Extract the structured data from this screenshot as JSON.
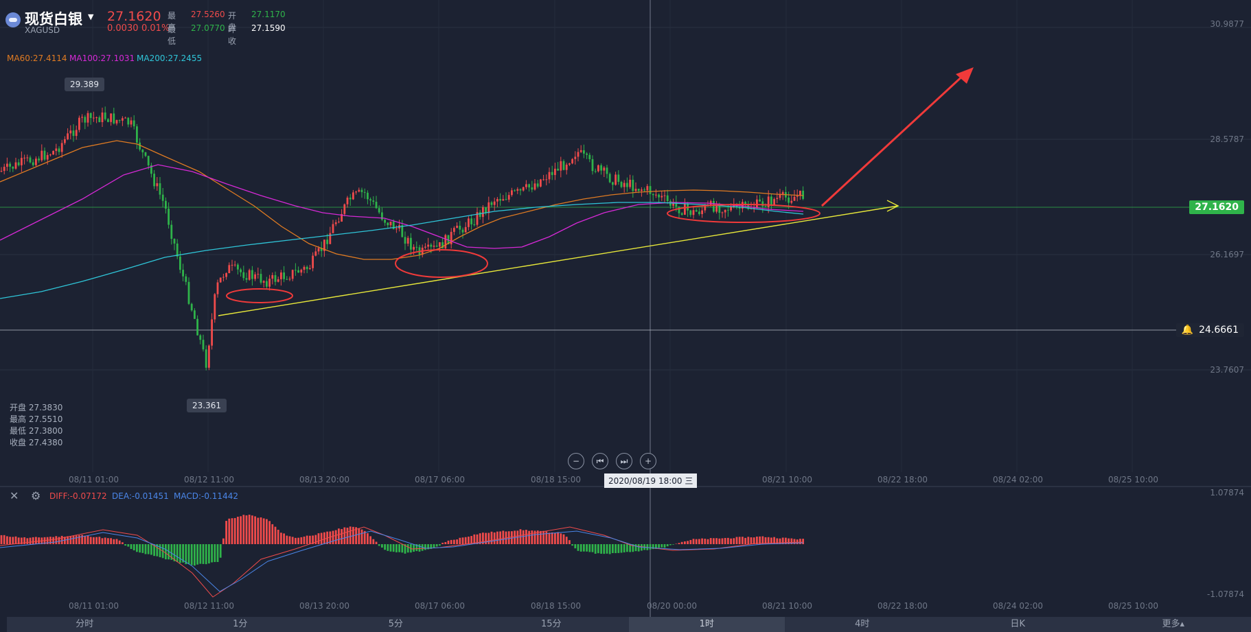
{
  "header": {
    "symbol_name": "现货白银",
    "symbol_code": "XAGUSD",
    "price": "27.1620",
    "change": "0.0030",
    "change_pct": "0.01%",
    "high_label": "最高",
    "high_value": "27.5260",
    "open_label": "开盘",
    "open_value": "27.1170",
    "low_label": "最低",
    "low_value": "27.0770",
    "prev_close_label": "昨收",
    "prev_close_value": "27.1590"
  },
  "ma_legend": {
    "ma60": "MA60:27.4114",
    "ma100": "MA100:27.1031",
    "ma200": "MA200:27.2455"
  },
  "cursor_ohlc": {
    "open": "开盘 27.3830",
    "high": "最高 27.5510",
    "low": "最低 27.3800",
    "close": "收盘 27.4380"
  },
  "price_axis": [
    "30.9877",
    "28.5787",
    "26.1697",
    "23.7607"
  ],
  "current_price_tag": "27.1620",
  "alert_price_tag": "24.6661",
  "annotations": {
    "max_label": "29.389",
    "min_label": "23.361"
  },
  "time_axis": [
    "08/11 01:00",
    "08/12 11:00",
    "08/13 20:00",
    "08/17 06:00",
    "08/18 15:00",
    "08/20 00:00",
    "08/21 10:00",
    "08/22 18:00",
    "08/24 02:00",
    "08/25 10:00"
  ],
  "time_axis_main_visible": [
    "08/11 01:00",
    "08/12 11:00",
    "08/13 20:00",
    "08/17 06:00",
    "08/18 15:00",
    "08/21 10:00",
    "08/22 18:00",
    "08/24 02:00",
    "08/25 10:00"
  ],
  "cursor_time": "2020/08/19 18:00 三",
  "macd": {
    "diff": "DIFF:-0.07172",
    "dea": "DEA:-0.01451",
    "macd": "MACD:-0.11442",
    "axis_top": "1.07874",
    "axis_bottom": "-1.07874"
  },
  "tabs": [
    "分时",
    "1分",
    "5分",
    "15分",
    "1时",
    "4时",
    "日K",
    "更多▴"
  ],
  "active_tab": "1时",
  "colors": {
    "up": "#f04b4b",
    "down": "#2fb34a",
    "ma60": "#e07b22",
    "ma100": "#d629d6",
    "ma200": "#2fc6d9",
    "trendline": "#e8e83a",
    "annotation_red": "#f03a3a",
    "background": "#1c2232"
  }
}
